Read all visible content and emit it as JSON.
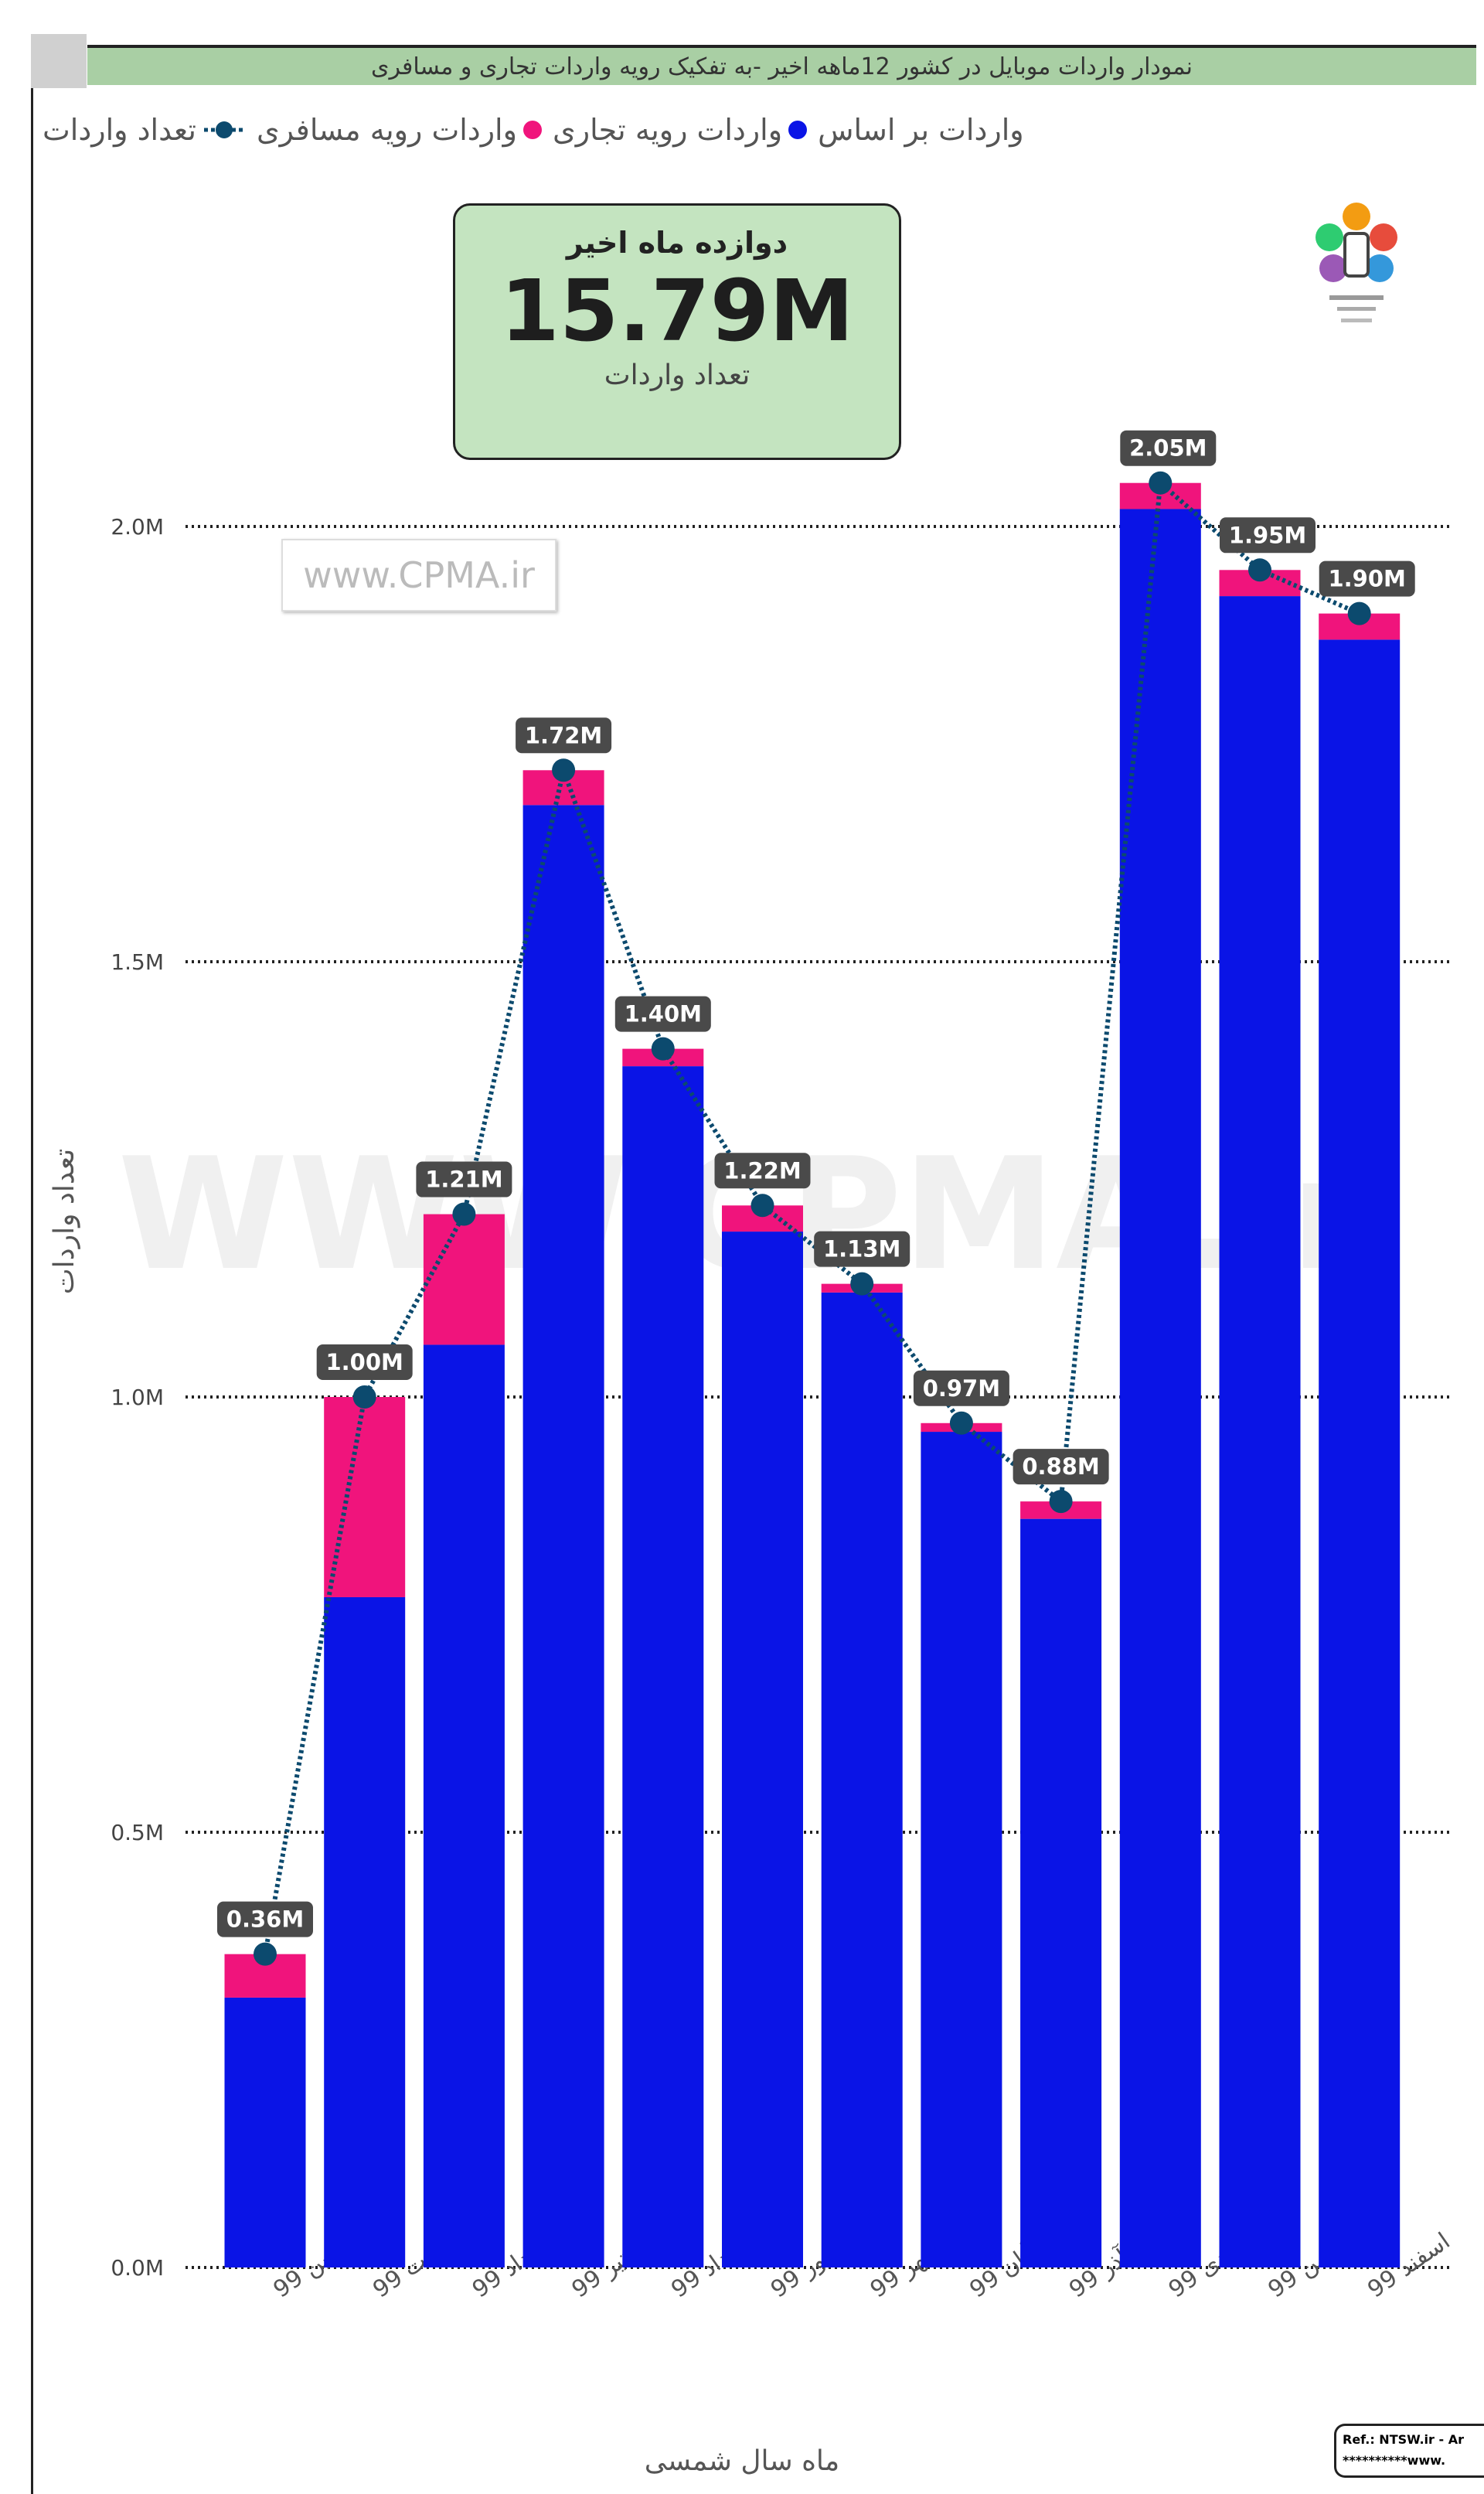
{
  "header": {
    "title": "نمودار واردات موبایل در کشور 12ماهه اخیر -به تفکیک رویه واردات تجاری و مسافری"
  },
  "legend": {
    "prefix": "واردات بر اساس",
    "items": [
      {
        "label": "واردات رویه تجاری",
        "color": "#0a14e6",
        "shape": "dot"
      },
      {
        "label": "واردات رویه مسافری",
        "color": "#f0147c",
        "shape": "dot"
      },
      {
        "label": "تعداد واردات",
        "color": "#0c4a6e",
        "shape": "line-dot"
      }
    ]
  },
  "kpi": {
    "title": "دوازده ماه اخیر",
    "value": "15.79M",
    "subtitle": "تعداد واردات"
  },
  "watermark": {
    "small": "www.CPMA.ir",
    "large": "WWW.CPMA.ir"
  },
  "ref": {
    "line1": "Ref.: NTSW.ir - Ar",
    "line2": "**********www."
  },
  "chart_data": {
    "type": "bar",
    "stacked": true,
    "categories": [
      "فروردین 99",
      "اردیبهشت 99",
      "خرداد 99",
      "تیر 99",
      "مرداد 99",
      "شهریور 99",
      "مهر 99",
      "آبان 99",
      "آذر 99",
      "دی 99",
      "بهمن 99",
      "اسفند 99"
    ],
    "series": [
      {
        "name": "واردات رویه تجاری",
        "color": "#0a14e6",
        "values": [
          0.31,
          0.77,
          1.06,
          1.68,
          1.38,
          1.19,
          1.12,
          0.96,
          0.86,
          2.02,
          1.92,
          1.87
        ]
      },
      {
        "name": "واردات رویه مسافری",
        "color": "#f0147c",
        "values": [
          0.05,
          0.23,
          0.15,
          0.04,
          0.02,
          0.03,
          0.01,
          0.01,
          0.02,
          0.03,
          0.03,
          0.03
        ]
      }
    ],
    "line": {
      "name": "تعداد واردات",
      "color": "#0c4a6e",
      "values": [
        0.36,
        1.0,
        1.21,
        1.72,
        1.4,
        1.22,
        1.13,
        0.97,
        0.88,
        2.05,
        1.95,
        1.9
      ],
      "labels": [
        "0.36M",
        "1.00M",
        "1.21M",
        "1.72M",
        "1.40M",
        "1.22M",
        "1.13M",
        "0.97M",
        "0.88M",
        "2.05M",
        "1.95M",
        "1.90M"
      ]
    },
    "xlabel": "ماه سال شمسی",
    "ylabel": "تعداد واردات",
    "ylim": [
      0,
      2.0
    ],
    "yticks": [
      0,
      0.5,
      1.0,
      1.5,
      2.0
    ],
    "ytick_labels": [
      "0.0M",
      "0.5M",
      "1.0M",
      "1.5M",
      "2.0M"
    ],
    "grid": true
  }
}
